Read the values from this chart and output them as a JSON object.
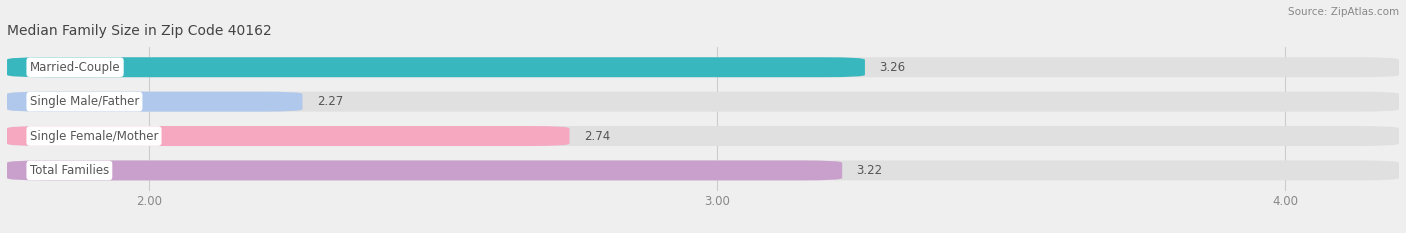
{
  "title": "Median Family Size in Zip Code 40162",
  "source": "Source: ZipAtlas.com",
  "categories": [
    "Married-Couple",
    "Single Male/Father",
    "Single Female/Mother",
    "Total Families"
  ],
  "values": [
    3.26,
    2.27,
    2.74,
    3.22
  ],
  "bar_colors": [
    "#38b8be",
    "#b0c8ec",
    "#f5a8bf",
    "#c9a0cc"
  ],
  "label_text_color": "#555555",
  "value_text_color": "#555555",
  "background_color": "#efefef",
  "bar_background_color": "#e0e0e0",
  "xlim_min": 1.75,
  "xlim_max": 4.2,
  "xticks": [
    2.0,
    3.0,
    4.0
  ],
  "xtick_labels": [
    "2.00",
    "3.00",
    "4.00"
  ],
  "title_fontsize": 10,
  "label_fontsize": 8.5,
  "value_fontsize": 8.5,
  "tick_fontsize": 8.5,
  "bar_height": 0.58
}
